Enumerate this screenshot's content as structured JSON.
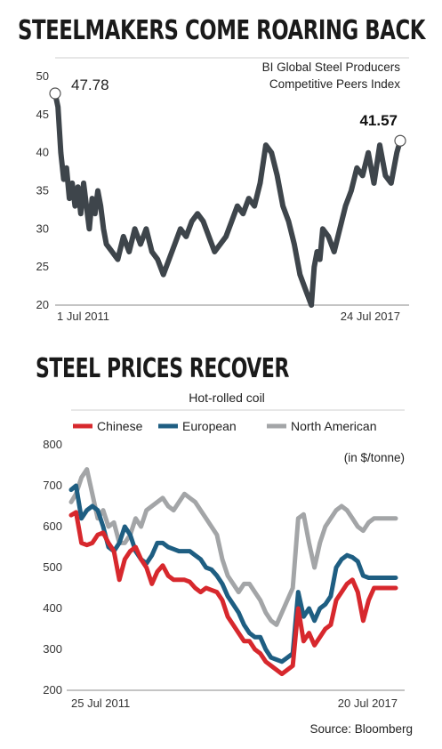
{
  "chart_data": [
    {
      "type": "line",
      "title": "STEELMAKERS COME ROARING BACK",
      "subtitle": [
        "BI Global Steel Producers",
        "Competitive Peers Index"
      ],
      "x_start": "1 Jul 2011",
      "x_end": "24 Jul 2017",
      "yticks": [
        "50",
        "45",
        "40",
        "35",
        "30",
        "25",
        "20"
      ],
      "ylim": [
        20,
        50
      ],
      "grid": false,
      "start_label": "47.78",
      "end_label": "41.57",
      "color": "#3e454b",
      "series": [
        {
          "x": [
            2011.5,
            2011.55,
            2011.6,
            2011.65,
            2011.7,
            2011.75,
            2011.8,
            2011.85,
            2011.9,
            2011.95,
            2012.0,
            2012.05,
            2012.1,
            2012.15,
            2012.2,
            2012.25,
            2012.3,
            2012.35,
            2012.4,
            2012.5,
            2012.6,
            2012.7,
            2012.8,
            2012.9,
            2013.0,
            2013.1,
            2013.2,
            2013.3,
            2013.4,
            2013.5,
            2013.6,
            2013.7,
            2013.8,
            2013.9,
            2014.0,
            2014.1,
            2014.2,
            2014.3,
            2014.4,
            2014.5,
            2014.6,
            2014.7,
            2014.8,
            2014.9,
            2015.0,
            2015.1,
            2015.2,
            2015.3,
            2015.4,
            2015.5,
            2015.6,
            2015.7,
            2015.8,
            2015.9,
            2016.0,
            2016.05,
            2016.1,
            2016.15,
            2016.2,
            2016.3,
            2016.4,
            2016.5,
            2016.6,
            2016.7,
            2016.8,
            2016.9,
            2017.0,
            2017.1,
            2017.2,
            2017.3,
            2017.4,
            2017.5,
            2017.56
          ],
          "values": [
            47.78,
            46,
            40,
            36.5,
            38,
            34,
            36,
            33,
            35.5,
            32,
            36,
            33,
            30,
            34,
            32,
            35,
            33,
            30,
            28,
            27,
            26,
            29,
            27,
            30,
            28,
            30,
            27,
            26,
            24,
            26,
            28,
            30,
            29,
            31,
            32,
            31,
            29,
            27,
            28,
            29,
            31,
            33,
            32,
            34,
            33,
            36,
            41,
            40,
            37,
            33,
            31,
            28,
            24,
            22,
            20,
            25,
            27,
            26,
            30,
            29,
            27,
            30,
            33,
            35,
            38,
            37,
            40,
            36,
            41,
            37,
            36,
            40,
            41.57
          ]
        }
      ]
    },
    {
      "type": "line",
      "title": "STEEL PRICES RECOVER",
      "subtitle": "Hot-rolled coil",
      "unit": "(in $/tonne)",
      "x_start": "25 Jul 2011",
      "x_end": "20 Jul 2017",
      "yticks": [
        "800",
        "700",
        "600",
        "500",
        "400",
        "300",
        "200"
      ],
      "ylim": [
        200,
        800
      ],
      "grid": false,
      "legend_position": "top",
      "x": [
        2011.56,
        2011.65,
        2011.75,
        2011.85,
        2011.95,
        2012.05,
        2012.15,
        2012.25,
        2012.35,
        2012.45,
        2012.55,
        2012.65,
        2012.75,
        2012.85,
        2012.95,
        2013.05,
        2013.15,
        2013.25,
        2013.35,
        2013.45,
        2013.55,
        2013.65,
        2013.75,
        2013.85,
        2013.95,
        2014.05,
        2014.15,
        2014.25,
        2014.35,
        2014.45,
        2014.55,
        2014.65,
        2014.75,
        2014.85,
        2014.95,
        2015.05,
        2015.15,
        2015.25,
        2015.35,
        2015.45,
        2015.55,
        2015.65,
        2015.75,
        2015.85,
        2015.95,
        2016.05,
        2016.15,
        2016.25,
        2016.35,
        2016.45,
        2016.55,
        2016.65,
        2016.75,
        2016.85,
        2016.95,
        2017.05,
        2017.15,
        2017.25,
        2017.35,
        2017.45,
        2017.55
      ],
      "series": [
        {
          "name": "Chinese",
          "color": "#d7282d",
          "values": [
            628,
            635,
            560,
            555,
            560,
            580,
            585,
            560,
            540,
            470,
            520,
            540,
            550,
            520,
            500,
            460,
            490,
            505,
            480,
            470,
            470,
            470,
            465,
            450,
            440,
            450,
            445,
            440,
            420,
            380,
            360,
            340,
            320,
            320,
            300,
            290,
            270,
            260,
            250,
            240,
            250,
            260,
            400,
            320,
            340,
            310,
            330,
            350,
            360,
            420,
            440,
            460,
            470,
            440,
            370,
            420,
            450,
            450,
            450,
            450,
            450
          ]
        },
        {
          "name": "European",
          "color": "#1e5e82",
          "values": [
            690,
            700,
            620,
            640,
            650,
            640,
            600,
            550,
            540,
            560,
            600,
            580,
            540,
            520,
            510,
            530,
            560,
            560,
            550,
            545,
            540,
            540,
            540,
            530,
            520,
            500,
            495,
            480,
            460,
            430,
            410,
            390,
            360,
            340,
            330,
            330,
            300,
            280,
            275,
            270,
            280,
            290,
            440,
            380,
            400,
            370,
            400,
            410,
            430,
            500,
            520,
            530,
            525,
            515,
            480,
            475,
            475,
            475,
            475,
            475,
            475
          ]
        },
        {
          "name": "North American",
          "color": "#a3a5a7",
          "values": [
            660,
            680,
            720,
            740,
            680,
            620,
            640,
            600,
            610,
            560,
            560,
            580,
            620,
            600,
            640,
            650,
            660,
            670,
            650,
            640,
            660,
            680,
            670,
            660,
            640,
            620,
            600,
            580,
            520,
            480,
            460,
            440,
            460,
            460,
            440,
            420,
            390,
            370,
            360,
            390,
            420,
            450,
            620,
            630,
            560,
            500,
            560,
            600,
            620,
            640,
            650,
            640,
            620,
            600,
            590,
            610,
            620,
            620,
            620,
            620,
            620
          ]
        }
      ]
    }
  ],
  "source": "Source: Bloomberg"
}
